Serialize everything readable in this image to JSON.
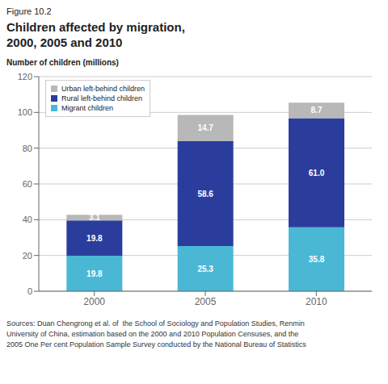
{
  "chart_data": {
    "type": "bar",
    "stacked": true,
    "data_labels": true,
    "grid": true,
    "legend": "upper left",
    "title": "Children affected by migration,\n2000, 2005 and 2010",
    "ylabel": "Number of children (millions)",
    "annotations": [
      "Figure 10.2",
      "Sources: Duan Chengrong et al. of  the School of Sociology and Population Studies, Renmin\nUniversity of China, estimation based on the 2000 and 2010 Population Censuses, and the\n2005 One Per cent Population Sample Survey conducted by the National Bureau of Statistics"
    ],
    "categories": [
      "2000",
      "2005",
      "2010"
    ],
    "series": [
      {
        "name": "Migrant children",
        "color": "#4ab8d5",
        "values": [
          19.8,
          25.3,
          35.8
        ]
      },
      {
        "name": "Rural left-behind children",
        "color": "#2b3d9c",
        "values": [
          19.8,
          58.6,
          61.0
        ],
        "value_labels": [
          "19.8",
          "58.6",
          "61.0"
        ]
      },
      {
        "name": "Urban left-behind children",
        "color": "#b8b8b8",
        "values": [
          3.1,
          14.7,
          8.7
        ]
      }
    ],
    "ylim": [
      0,
      120
    ],
    "yticks": [
      0,
      20,
      40,
      60,
      80,
      100,
      120
    ]
  }
}
